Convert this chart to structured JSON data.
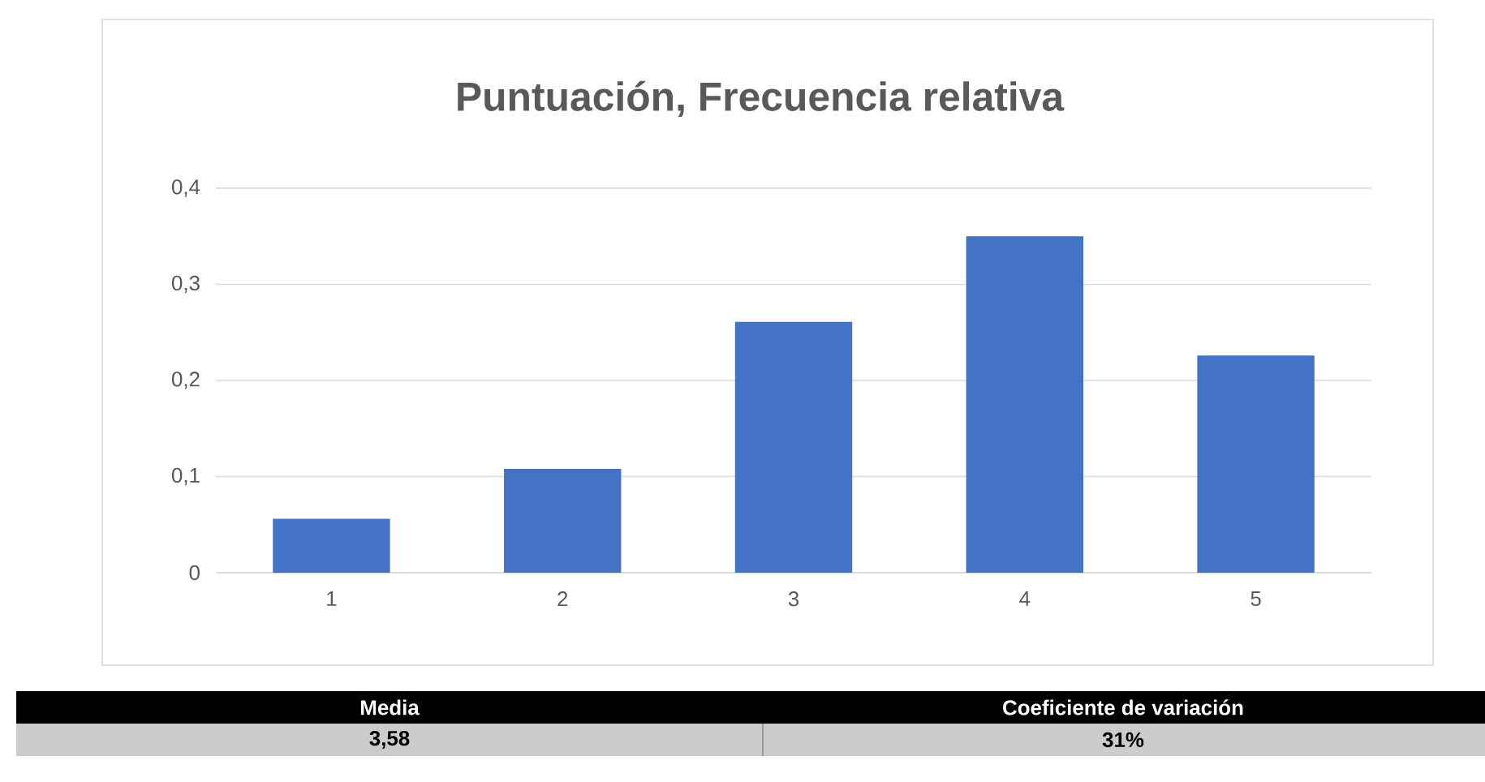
{
  "chart_data": {
    "type": "bar",
    "title": "Puntuación, Frecuencia relativa",
    "categories": [
      "1",
      "2",
      "3",
      "4",
      "5"
    ],
    "values": [
      0.056,
      0.108,
      0.261,
      0.35,
      0.226
    ],
    "color": "#4472c4",
    "ylim": [
      0,
      0.4
    ],
    "yticks": [
      0,
      {
        "value": 0.1,
        "label": "0,1"
      },
      {
        "value": 0.2,
        "label": "0,2"
      },
      {
        "value": 0.3,
        "label": "0,3"
      },
      {
        "value": 0.4,
        "label": "0,4"
      }
    ],
    "grid": "y",
    "annotations": [
      "Media",
      "Coeficiente de variación",
      "3,58",
      "31%"
    ]
  }
}
